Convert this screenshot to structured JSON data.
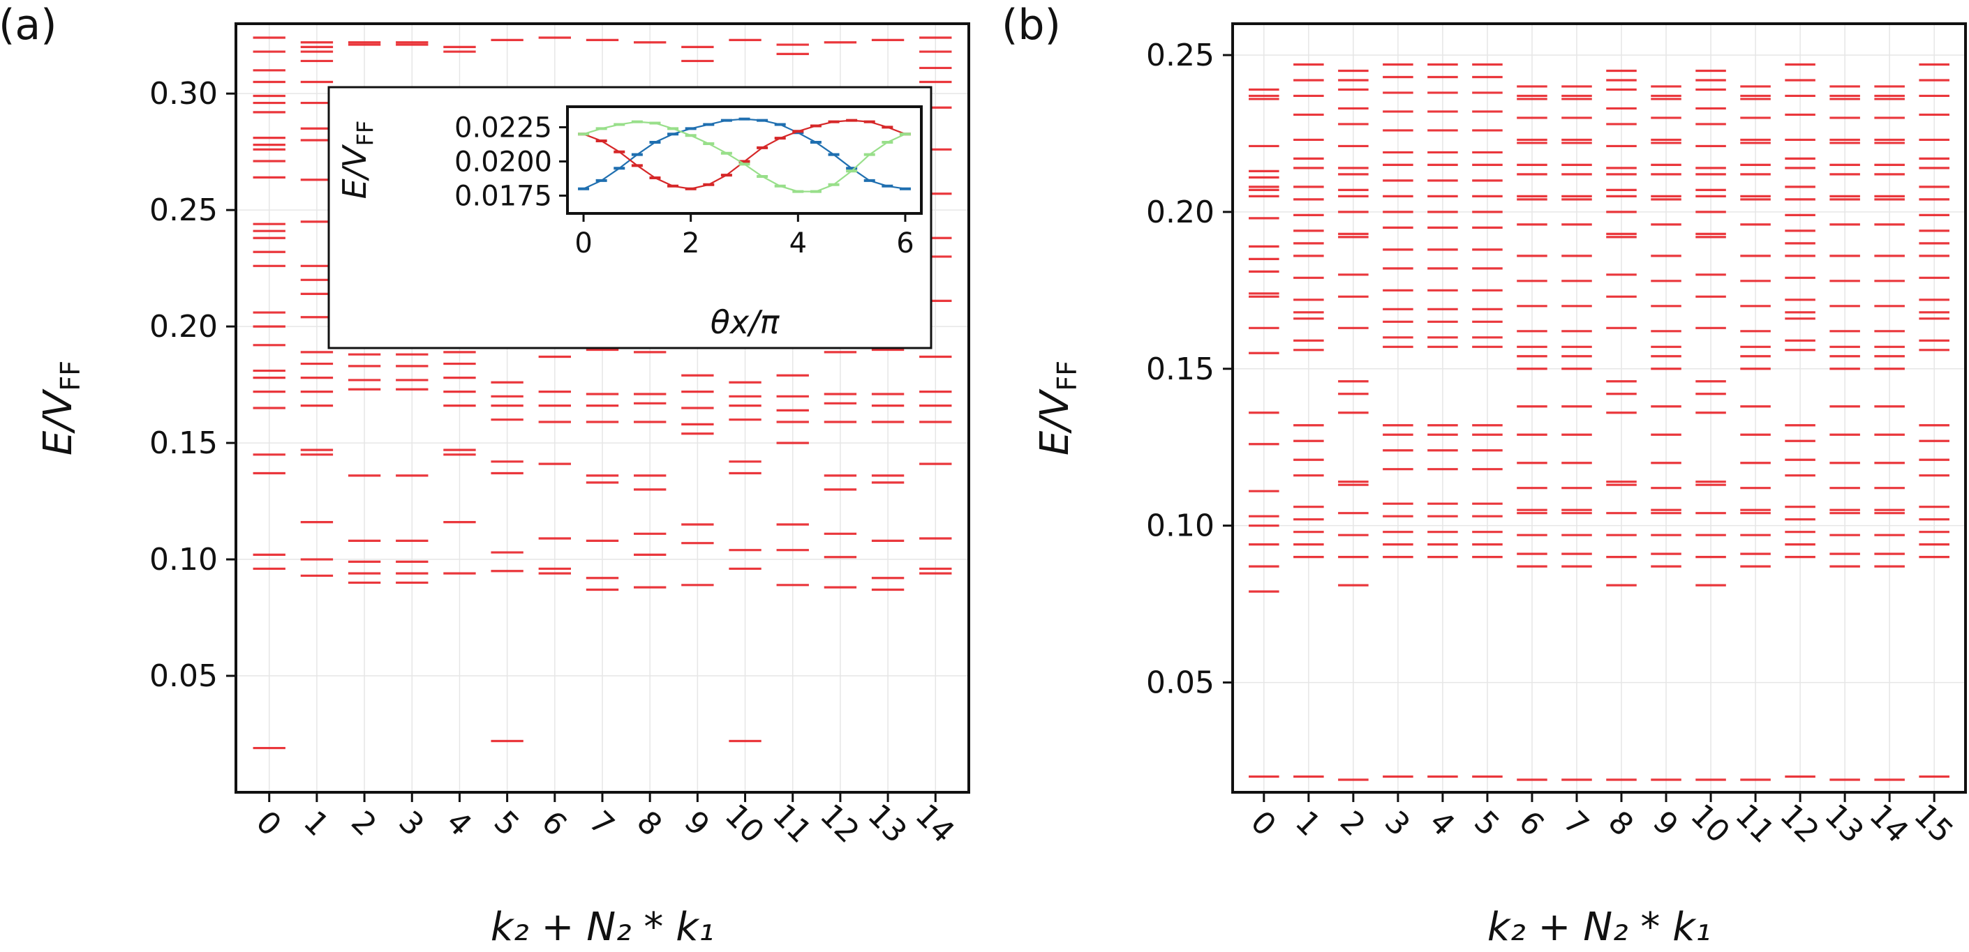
{
  "panels": [
    {
      "label": "(a)",
      "xlabel": "k₂ + N₂ * k₁",
      "ylabel_main": "E/V",
      "ylabel_sub": "FF",
      "xticks": [
        "0",
        "1",
        "2",
        "3",
        "4",
        "5",
        "6",
        "7",
        "8",
        "9",
        "10",
        "11",
        "12",
        "13",
        "14"
      ],
      "yticks": [
        "0.05",
        "0.10",
        "0.15",
        "0.20",
        "0.25",
        "0.30"
      ]
    },
    {
      "label": "(b)",
      "xlabel": "k₂ + N₂ * k₁",
      "ylabel_main": "E/V",
      "ylabel_sub": "FF",
      "xticks": [
        "0",
        "1",
        "2",
        "3",
        "4",
        "5",
        "6",
        "7",
        "8",
        "9",
        "10",
        "11",
        "12",
        "13",
        "14",
        "15"
      ],
      "yticks": [
        "0.05",
        "0.10",
        "0.15",
        "0.20",
        "0.25"
      ]
    }
  ],
  "inset": {
    "xlabel": "θx/π",
    "ylabel_main": "E/V",
    "ylabel_sub": "FF",
    "xticks": [
      "0",
      "2",
      "4",
      "6"
    ],
    "yticks": [
      "0.0175",
      "0.0200",
      "0.0225"
    ]
  },
  "colors": {
    "levels": "#e8262b",
    "inset_series": [
      "#1f6fb0",
      "#d62728",
      "#98df8a"
    ],
    "axes": "#111111",
    "grid": "#e6e6e6"
  },
  "chart_data": [
    {
      "type": "scatter",
      "marker": "horizontal-dash",
      "xlabel": "k₂ + N₂ * k₁",
      "ylabel": "E/V_FF",
      "xlim": [
        -0.7,
        14.7
      ],
      "ylim": [
        0,
        0.33
      ],
      "grid": true,
      "levels": [
        [
          0.019,
          0.096,
          0.102,
          0.137,
          0.145,
          0.165,
          0.172,
          0.178,
          0.181,
          0.192,
          0.2,
          0.206,
          0.226,
          0.232,
          0.238,
          0.241,
          0.244,
          0.264,
          0.271,
          0.276,
          0.278,
          0.281,
          0.292,
          0.296,
          0.299,
          0.305,
          0.31,
          0.318,
          0.324
        ],
        [
          0.093,
          0.1,
          0.116,
          0.145,
          0.147,
          0.166,
          0.172,
          0.178,
          0.184,
          0.189,
          0.204,
          0.214,
          0.22,
          0.226,
          0.245,
          0.263,
          0.28,
          0.285,
          0.296,
          0.305,
          0.314,
          0.318,
          0.32,
          0.322
        ],
        [
          0.09,
          0.094,
          0.099,
          0.108,
          0.136,
          0.173,
          0.177,
          0.183,
          0.188,
          0.321,
          0.322
        ],
        [
          0.09,
          0.094,
          0.099,
          0.108,
          0.136,
          0.173,
          0.177,
          0.183,
          0.188,
          0.321,
          0.322
        ],
        [
          0.094,
          0.116,
          0.145,
          0.147,
          0.166,
          0.172,
          0.178,
          0.184,
          0.189,
          0.318,
          0.32
        ],
        [
          0.022,
          0.095,
          0.103,
          0.137,
          0.142,
          0.16,
          0.166,
          0.17,
          0.176,
          0.323
        ],
        [
          0.094,
          0.096,
          0.109,
          0.141,
          0.159,
          0.166,
          0.172,
          0.187,
          0.324
        ],
        [
          0.087,
          0.092,
          0.108,
          0.133,
          0.136,
          0.159,
          0.166,
          0.171,
          0.19,
          0.197,
          0.323
        ],
        [
          0.088,
          0.102,
          0.111,
          0.13,
          0.136,
          0.159,
          0.167,
          0.171,
          0.189,
          0.192,
          0.322
        ],
        [
          0.089,
          0.107,
          0.115,
          0.154,
          0.158,
          0.165,
          0.172,
          0.179,
          0.194,
          0.314,
          0.32
        ],
        [
          0.022,
          0.096,
          0.104,
          0.137,
          0.142,
          0.16,
          0.166,
          0.17,
          0.176,
          0.323
        ],
        [
          0.089,
          0.104,
          0.115,
          0.15,
          0.159,
          0.164,
          0.17,
          0.179,
          0.196,
          0.317,
          0.321
        ],
        [
          0.088,
          0.101,
          0.111,
          0.13,
          0.136,
          0.159,
          0.167,
          0.171,
          0.189,
          0.192,
          0.322
        ],
        [
          0.087,
          0.092,
          0.108,
          0.133,
          0.136,
          0.159,
          0.166,
          0.171,
          0.19,
          0.197,
          0.323
        ],
        [
          0.094,
          0.096,
          0.109,
          0.141,
          0.159,
          0.166,
          0.172,
          0.187,
          0.211,
          0.23,
          0.238,
          0.257,
          0.276,
          0.294,
          0.305,
          0.311,
          0.318,
          0.324
        ]
      ]
    },
    {
      "type": "line",
      "xlabel": "θx/π",
      "ylabel": "E/V_FF",
      "xlim": [
        -0.3,
        6.3
      ],
      "ylim": [
        0.0162,
        0.024
      ],
      "x": [
        0.0,
        0.3333,
        0.6667,
        1.0,
        1.3333,
        1.6667,
        2.0,
        2.3333,
        2.6667,
        3.0,
        3.3333,
        3.6667,
        4.0,
        4.3333,
        4.6667,
        5.0,
        5.3333,
        5.6667,
        6.0
      ],
      "series": [
        {
          "values": [
            0.018,
            0.0186,
            0.0195,
            0.0205,
            0.0214,
            0.022,
            0.0224,
            0.0227,
            0.023,
            0.0231,
            0.023,
            0.0227,
            0.0221,
            0.0214,
            0.0205,
            0.0195,
            0.0186,
            0.0182,
            0.018
          ]
        },
        {
          "values": [
            0.022,
            0.0215,
            0.0207,
            0.0197,
            0.0188,
            0.0182,
            0.018,
            0.0183,
            0.019,
            0.02,
            0.021,
            0.0217,
            0.0222,
            0.0226,
            0.0229,
            0.023,
            0.0229,
            0.0225,
            0.022
          ]
        },
        {
          "values": [
            0.022,
            0.0224,
            0.0227,
            0.0229,
            0.0228,
            0.0224,
            0.0219,
            0.0213,
            0.0206,
            0.0198,
            0.0189,
            0.0182,
            0.0178,
            0.0178,
            0.0183,
            0.0193,
            0.0205,
            0.0214,
            0.022
          ]
        }
      ]
    },
    {
      "type": "scatter",
      "marker": "horizontal-dash",
      "xlabel": "k₂ + N₂ * k₁",
      "ylabel": "E/V_FF",
      "xlim": [
        -0.7,
        15.7
      ],
      "ylim": [
        0.015,
        0.26
      ],
      "grid": true,
      "levels": [
        [
          0.02,
          0.079,
          0.087,
          0.094,
          0.1,
          0.103,
          0.111,
          0.126,
          0.136,
          0.155,
          0.163,
          0.173,
          0.174,
          0.181,
          0.185,
          0.189,
          0.198,
          0.205,
          0.207,
          0.208,
          0.211,
          0.213,
          0.221,
          0.236,
          0.237,
          0.239
        ],
        [
          0.02,
          0.09,
          0.094,
          0.098,
          0.102,
          0.106,
          0.116,
          0.121,
          0.127,
          0.132,
          0.156,
          0.159,
          0.166,
          0.168,
          0.172,
          0.179,
          0.186,
          0.19,
          0.194,
          0.199,
          0.204,
          0.208,
          0.214,
          0.217,
          0.223,
          0.231,
          0.237,
          0.242,
          0.247
        ],
        [
          0.019,
          0.081,
          0.09,
          0.097,
          0.104,
          0.113,
          0.114,
          0.136,
          0.142,
          0.146,
          0.163,
          0.173,
          0.18,
          0.192,
          0.193,
          0.2,
          0.205,
          0.207,
          0.212,
          0.214,
          0.221,
          0.228,
          0.233,
          0.239,
          0.242,
          0.245
        ],
        [
          0.02,
          0.09,
          0.094,
          0.098,
          0.103,
          0.107,
          0.118,
          0.124,
          0.129,
          0.132,
          0.157,
          0.16,
          0.165,
          0.169,
          0.175,
          0.182,
          0.188,
          0.195,
          0.2,
          0.205,
          0.21,
          0.215,
          0.219,
          0.226,
          0.232,
          0.238,
          0.243,
          0.247
        ],
        [
          0.02,
          0.09,
          0.094,
          0.098,
          0.103,
          0.107,
          0.118,
          0.124,
          0.129,
          0.132,
          0.157,
          0.16,
          0.165,
          0.169,
          0.175,
          0.182,
          0.188,
          0.195,
          0.2,
          0.205,
          0.21,
          0.215,
          0.219,
          0.226,
          0.232,
          0.238,
          0.243,
          0.247
        ],
        [
          0.02,
          0.09,
          0.094,
          0.098,
          0.103,
          0.107,
          0.118,
          0.124,
          0.129,
          0.132,
          0.157,
          0.16,
          0.165,
          0.169,
          0.175,
          0.182,
          0.188,
          0.195,
          0.2,
          0.205,
          0.21,
          0.215,
          0.219,
          0.226,
          0.232,
          0.238,
          0.243,
          0.247
        ],
        [
          0.019,
          0.087,
          0.091,
          0.097,
          0.104,
          0.105,
          0.112,
          0.12,
          0.129,
          0.138,
          0.15,
          0.154,
          0.157,
          0.162,
          0.17,
          0.178,
          0.186,
          0.196,
          0.204,
          0.205,
          0.212,
          0.215,
          0.222,
          0.223,
          0.23,
          0.236,
          0.237,
          0.24
        ],
        [
          0.019,
          0.087,
          0.091,
          0.097,
          0.104,
          0.105,
          0.112,
          0.12,
          0.129,
          0.138,
          0.15,
          0.154,
          0.157,
          0.162,
          0.17,
          0.178,
          0.186,
          0.196,
          0.204,
          0.205,
          0.212,
          0.215,
          0.222,
          0.223,
          0.23,
          0.236,
          0.237,
          0.24
        ],
        [
          0.019,
          0.081,
          0.09,
          0.097,
          0.104,
          0.113,
          0.114,
          0.136,
          0.142,
          0.146,
          0.163,
          0.173,
          0.18,
          0.192,
          0.193,
          0.2,
          0.205,
          0.207,
          0.212,
          0.214,
          0.221,
          0.228,
          0.233,
          0.239,
          0.242,
          0.245
        ],
        [
          0.019,
          0.087,
          0.091,
          0.097,
          0.104,
          0.105,
          0.112,
          0.12,
          0.129,
          0.138,
          0.15,
          0.154,
          0.157,
          0.162,
          0.17,
          0.178,
          0.186,
          0.196,
          0.204,
          0.205,
          0.212,
          0.215,
          0.222,
          0.223,
          0.23,
          0.236,
          0.237,
          0.24
        ],
        [
          0.019,
          0.081,
          0.09,
          0.097,
          0.104,
          0.113,
          0.114,
          0.136,
          0.142,
          0.146,
          0.163,
          0.173,
          0.18,
          0.192,
          0.193,
          0.2,
          0.205,
          0.207,
          0.212,
          0.214,
          0.221,
          0.228,
          0.233,
          0.239,
          0.242,
          0.245
        ],
        [
          0.019,
          0.087,
          0.091,
          0.097,
          0.104,
          0.105,
          0.112,
          0.12,
          0.129,
          0.138,
          0.15,
          0.154,
          0.157,
          0.162,
          0.17,
          0.178,
          0.186,
          0.196,
          0.204,
          0.205,
          0.212,
          0.215,
          0.222,
          0.223,
          0.23,
          0.236,
          0.237,
          0.24
        ],
        [
          0.02,
          0.09,
          0.094,
          0.098,
          0.102,
          0.106,
          0.116,
          0.121,
          0.127,
          0.132,
          0.156,
          0.159,
          0.166,
          0.168,
          0.172,
          0.179,
          0.186,
          0.19,
          0.194,
          0.199,
          0.204,
          0.208,
          0.214,
          0.217,
          0.223,
          0.231,
          0.237,
          0.242,
          0.247
        ],
        [
          0.019,
          0.087,
          0.091,
          0.097,
          0.104,
          0.105,
          0.112,
          0.12,
          0.129,
          0.138,
          0.15,
          0.154,
          0.157,
          0.162,
          0.17,
          0.178,
          0.186,
          0.196,
          0.204,
          0.205,
          0.212,
          0.215,
          0.222,
          0.223,
          0.23,
          0.236,
          0.237,
          0.24
        ],
        [
          0.019,
          0.087,
          0.091,
          0.097,
          0.104,
          0.105,
          0.112,
          0.12,
          0.129,
          0.138,
          0.15,
          0.154,
          0.157,
          0.162,
          0.17,
          0.178,
          0.186,
          0.196,
          0.204,
          0.205,
          0.212,
          0.215,
          0.222,
          0.223,
          0.23,
          0.236,
          0.237,
          0.24
        ],
        [
          0.02,
          0.09,
          0.094,
          0.098,
          0.102,
          0.106,
          0.116,
          0.121,
          0.127,
          0.132,
          0.156,
          0.159,
          0.166,
          0.168,
          0.172,
          0.179,
          0.186,
          0.19,
          0.194,
          0.199,
          0.204,
          0.208,
          0.214,
          0.217,
          0.223,
          0.231,
          0.237,
          0.242,
          0.247
        ]
      ]
    }
  ]
}
